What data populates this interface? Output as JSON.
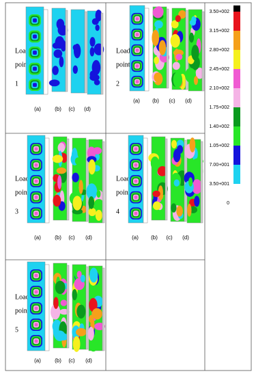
{
  "panels": [
    {
      "lines": [
        "Load",
        "point",
        "1"
      ],
      "subs": [
        "(a)",
        "(b)",
        "(c)",
        "(d)"
      ]
    },
    {
      "lines": [
        "Load",
        "point",
        "2"
      ],
      "subs": [
        "(a)",
        "(b)",
        "(c)",
        "(d)"
      ]
    },
    {
      "lines": [
        "Load",
        "point",
        "3"
      ],
      "subs": [
        "(a)",
        "(b)",
        "(c)",
        "(d)"
      ]
    },
    {
      "lines": [
        "Load",
        "point",
        "4"
      ],
      "subs": [
        "(a)",
        "(b)",
        "(c)",
        "(d)"
      ]
    },
    {
      "lines": [
        "Load",
        "point",
        "5"
      ],
      "subs": [
        "(a)",
        "(b)",
        "(c)",
        "(d)"
      ]
    }
  ],
  "legend": {
    "labels": [
      "3.50+002",
      "3.15+002",
      "2.80+002",
      "2.45+002",
      "2.10+002",
      "1.75+002",
      "1.40+002",
      "1.05+002",
      "7.00+001",
      "3.50+001",
      "0"
    ],
    "colors": [
      "#000000",
      "#e8141c",
      "#f5a01a",
      "#f5f01e",
      "#f05ad2",
      "#f5b4e6",
      "#0a9a1e",
      "#28e628",
      "#1414dc",
      "#1ed2f0"
    ]
  }
}
